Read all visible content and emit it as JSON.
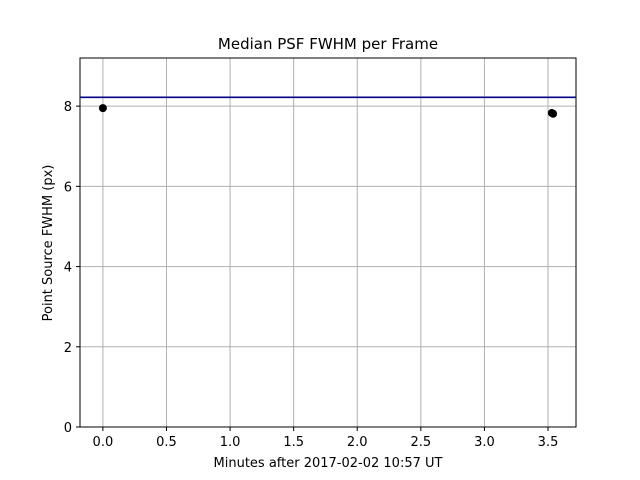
{
  "chart_data": {
    "type": "scatter",
    "title": "Median PSF FWHM per Frame",
    "xlabel": "Minutes after 2017-02-02 10:57 UT",
    "ylabel": "Point Source FWHM (px)",
    "xlim": [
      -0.18,
      3.72
    ],
    "ylim": [
      0,
      9.2
    ],
    "xticks": [
      0.0,
      0.5,
      1.0,
      1.5,
      2.0,
      2.5,
      3.0,
      3.5
    ],
    "xtick_labels": [
      "0.0",
      "0.5",
      "1.0",
      "1.5",
      "2.0",
      "2.5",
      "3.0",
      "3.5"
    ],
    "yticks": [
      0,
      2,
      4,
      6,
      8
    ],
    "ytick_labels": [
      "0",
      "2",
      "4",
      "6",
      "8"
    ],
    "grid": true,
    "points": [
      {
        "x": 0.0,
        "y": 7.95
      },
      {
        "x": 3.53,
        "y": 7.83
      },
      {
        "x": 3.54,
        "y": 7.81
      }
    ],
    "hline": {
      "y": 8.22
    },
    "colors": {
      "points": "#000000",
      "hline": "#00008b",
      "grid": "#b0b0b0",
      "axes": "#000000"
    }
  }
}
